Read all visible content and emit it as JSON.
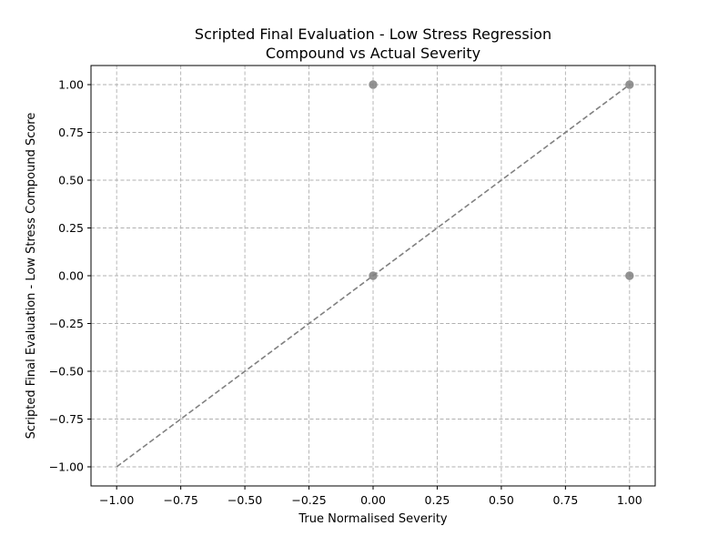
{
  "chart_data": {
    "type": "scatter",
    "title_lines": [
      "Scripted Final Evaluation - Low Stress Regression",
      "Compound vs Actual Severity"
    ],
    "xlabel": "True Normalised Severity",
    "ylabel": "Scripted Final Evaluation - Low Stress Compound Score",
    "xlim": [
      -1.1,
      1.1
    ],
    "ylim": [
      -1.1,
      1.1
    ],
    "x_ticks": [
      -1.0,
      -0.75,
      -0.5,
      -0.25,
      0.0,
      0.25,
      0.5,
      0.75,
      1.0
    ],
    "x_tick_labels": [
      "−1.00",
      "−0.75",
      "−0.50",
      "−0.25",
      "0.00",
      "0.25",
      "0.50",
      "0.75",
      "1.00"
    ],
    "y_ticks": [
      1.0,
      0.75,
      0.5,
      0.25,
      0.0,
      -0.25,
      -0.5,
      -0.75,
      -1.0
    ],
    "y_tick_labels": [
      "1.00",
      "0.75",
      "0.50",
      "0.25",
      "0.00",
      "−0.25",
      "−0.50",
      "−0.75",
      "−1.00"
    ],
    "grid": true,
    "points": [
      {
        "x": 0.0,
        "y": 1.0
      },
      {
        "x": 0.0,
        "y": 0.0
      },
      {
        "x": 1.0,
        "y": 1.0
      },
      {
        "x": 1.0,
        "y": 0.0
      }
    ],
    "reference_line": {
      "from": [
        -1.0,
        -1.0
      ],
      "to": [
        1.0,
        1.0
      ],
      "style": "dashed"
    },
    "colors": {
      "points": "#808080",
      "reference_line": "#808080",
      "grid": "#b0b0b0"
    }
  }
}
